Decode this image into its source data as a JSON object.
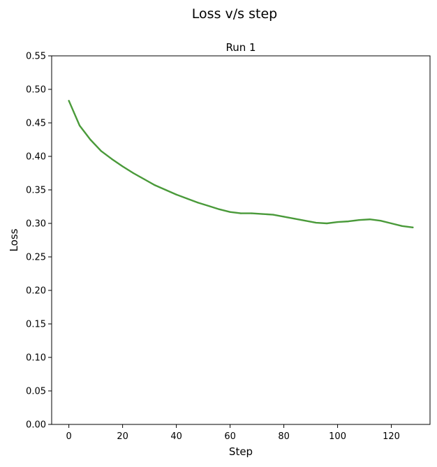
{
  "chart_data": {
    "type": "line",
    "suptitle": "Loss v/s step",
    "title": "Run 1",
    "xlabel": "Step",
    "ylabel": "Loss",
    "xlim": [
      -6.4,
      134.4
    ],
    "ylim": [
      0.0,
      0.55
    ],
    "xticks": [
      0,
      20,
      40,
      60,
      80,
      100,
      120
    ],
    "yticks": [
      0.0,
      0.05,
      0.1,
      0.15,
      0.2,
      0.25,
      0.3,
      0.35,
      0.4,
      0.45,
      0.5,
      0.55
    ],
    "ytick_labels": [
      "0.00",
      "0.05",
      "0.10",
      "0.15",
      "0.20",
      "0.25",
      "0.30",
      "0.35",
      "0.40",
      "0.45",
      "0.50",
      "0.55"
    ],
    "grid": false,
    "legend": false,
    "series": [
      {
        "color": "#4a9a3a",
        "x": [
          0,
          4,
          8,
          12,
          16,
          20,
          24,
          28,
          32,
          36,
          40,
          44,
          48,
          52,
          56,
          60,
          64,
          68,
          72,
          76,
          80,
          84,
          88,
          92,
          96,
          100,
          104,
          108,
          112,
          116,
          120,
          124,
          128
        ],
        "y": [
          0.483,
          0.446,
          0.425,
          0.408,
          0.396,
          0.385,
          0.375,
          0.366,
          0.357,
          0.35,
          0.343,
          0.337,
          0.331,
          0.326,
          0.321,
          0.317,
          0.315,
          0.315,
          0.314,
          0.313,
          0.31,
          0.307,
          0.304,
          0.301,
          0.3,
          0.302,
          0.303,
          0.305,
          0.306,
          0.304,
          0.3,
          0.296,
          0.294
        ]
      }
    ]
  }
}
